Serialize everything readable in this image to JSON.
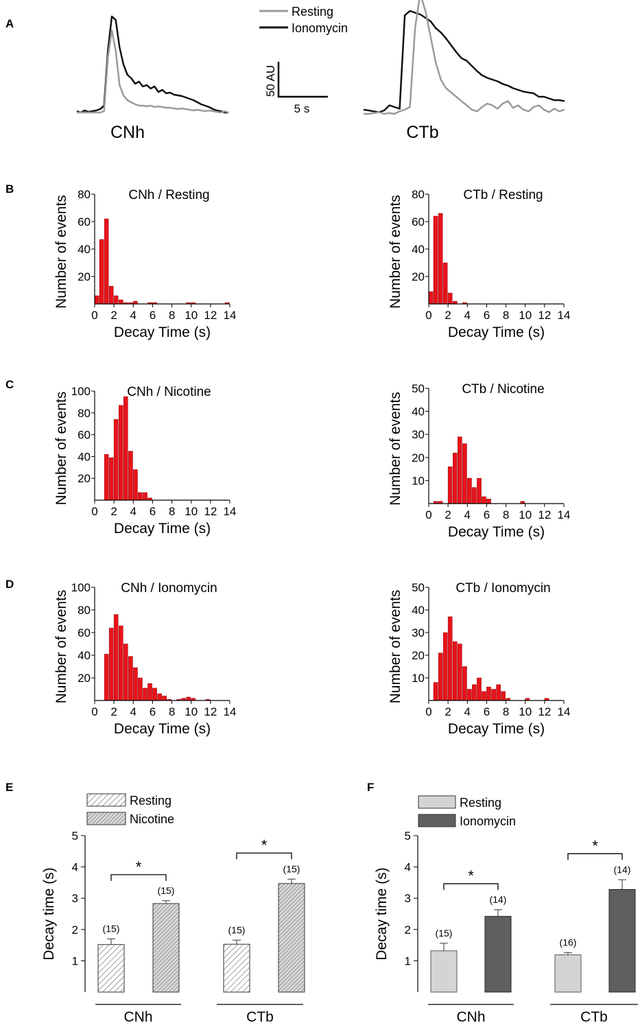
{
  "colors": {
    "histogram_bar": "#e8131b",
    "resting_trace": "#9a9a9a",
    "ionomycin_trace": "#111111",
    "resting_bar_F": "#d4d4d4",
    "ionomycin_bar_F": "#5f5f5f"
  },
  "panel_A": {
    "letter": "A",
    "legend": [
      "Resting",
      "Ionomycin"
    ],
    "scalebar_y": "50 AU",
    "scalebar_x": "5 s",
    "cell_labels": [
      "CNh",
      "CTb"
    ]
  },
  "histograms": {
    "xlabel": "Decay Time (s)",
    "ylabel": "Number of events",
    "rows": [
      {
        "letter": "B",
        "cells": [
          {
            "title": "CNh / Resting"
          },
          {
            "title": "CTb / Resting"
          }
        ]
      },
      {
        "letter": "C",
        "cells": [
          {
            "title": "CNh / Nicotine"
          },
          {
            "title": "CTb / Nicotine"
          }
        ]
      },
      {
        "letter": "D",
        "cells": [
          {
            "title": "CNh / Ionomycin"
          },
          {
            "title": "CTb / Ionomycin"
          }
        ]
      }
    ]
  },
  "panel_E": {
    "letter": "E",
    "ylabel": "Decay time (s)",
    "legend": [
      "Resting",
      "Nicotine"
    ],
    "groups": [
      "CNh",
      "CTb"
    ],
    "significance": "*"
  },
  "panel_F": {
    "letter": "F",
    "ylabel": "Decay time (s)",
    "legend": [
      "Resting",
      "Ionomycin"
    ],
    "groups": [
      "CNh",
      "CTb"
    ],
    "significance": "*"
  },
  "chart_data": [
    {
      "type": "line",
      "panel": "A",
      "cell": "CNh",
      "series": [
        {
          "name": "Resting",
          "values": [
            0,
            0,
            0,
            0,
            0,
            0,
            0,
            2,
            80,
            120,
            90,
            40,
            25,
            18,
            15,
            12,
            10,
            10,
            9,
            10,
            8,
            9,
            8,
            7,
            7,
            6,
            5,
            6,
            5,
            4,
            3,
            4,
            3,
            2,
            3,
            2,
            1,
            0,
            2,
            0
          ]
        },
        {
          "name": "Ionomycin",
          "values": [
            2,
            0,
            3,
            1,
            2,
            3,
            5,
            10,
            90,
            140,
            135,
            95,
            70,
            55,
            50,
            42,
            45,
            38,
            40,
            35,
            38,
            30,
            33,
            28,
            29,
            26,
            25,
            24,
            22,
            20,
            18,
            15,
            12,
            10,
            8,
            5,
            3,
            2,
            0,
            0
          ]
        }
      ]
    },
    {
      "type": "line",
      "panel": "A",
      "cell": "CTb",
      "series": [
        {
          "name": "Resting",
          "values": [
            0,
            0,
            1,
            2,
            0,
            1,
            0,
            3,
            5,
            8,
            100,
            140,
            120,
            90,
            60,
            40,
            30,
            25,
            20,
            15,
            10,
            5,
            3,
            8,
            12,
            10,
            6,
            12,
            15,
            7,
            10,
            5,
            3,
            8,
            10,
            5,
            2,
            6,
            3,
            5
          ]
        },
        {
          "name": "Ionomycin",
          "values": [
            5,
            4,
            3,
            2,
            4,
            10,
            8,
            6,
            115,
            120,
            118,
            116,
            112,
            108,
            100,
            95,
            88,
            80,
            72,
            65,
            62,
            56,
            50,
            45,
            42,
            40,
            38,
            35,
            33,
            30,
            28,
            26,
            25,
            24,
            20,
            20,
            18,
            16,
            16,
            15
          ]
        }
      ]
    },
    {
      "type": "bar",
      "panel": "B",
      "cell": "CNh / Resting",
      "bin_width": 0.5,
      "x_start": 0,
      "xlim": [
        0,
        14
      ],
      "ylim": [
        0,
        80
      ],
      "values": [
        6,
        47,
        62,
        13,
        6,
        3,
        1,
        1,
        2,
        0,
        0,
        1,
        1,
        0,
        0,
        0,
        0,
        0,
        0,
        1,
        1,
        0,
        0,
        0,
        0,
        0,
        0,
        1
      ]
    },
    {
      "type": "bar",
      "panel": "B",
      "cell": "CTb / Resting",
      "bin_width": 0.5,
      "x_start": 0,
      "xlim": [
        0,
        14
      ],
      "ylim": [
        0,
        80
      ],
      "values": [
        9,
        64,
        66,
        30,
        8,
        2,
        0,
        1
      ]
    },
    {
      "type": "bar",
      "panel": "C",
      "cell": "CNh / Nicotine",
      "bin_width": 0.5,
      "x_start": 1.0,
      "xlim": [
        0,
        14
      ],
      "ylim": [
        0,
        100
      ],
      "values": [
        42,
        39,
        74,
        87,
        95,
        45,
        28,
        7,
        7,
        2
      ]
    },
    {
      "type": "bar",
      "panel": "C",
      "cell": "CTb / Nicotine",
      "bin_width": 0.5,
      "x_start": 0.5,
      "xlim": [
        0,
        14
      ],
      "ylim": [
        0,
        50
      ],
      "values": [
        1,
        1,
        0,
        16,
        22,
        29,
        26,
        11,
        7,
        11,
        3,
        2,
        0,
        0,
        0,
        0,
        0,
        0,
        1
      ]
    },
    {
      "type": "bar",
      "panel": "D",
      "cell": "CNh / Ionomycin",
      "bin_width": 0.5,
      "x_start": 0.5,
      "xlim": [
        0,
        14
      ],
      "ylim": [
        0,
        100
      ],
      "values": [
        0,
        41,
        64,
        76,
        66,
        50,
        39,
        29,
        20,
        11,
        15,
        11,
        6,
        4,
        1,
        0,
        1,
        2,
        3,
        2,
        0,
        0,
        1,
        0,
        0,
        0,
        0
      ]
    },
    {
      "type": "bar",
      "panel": "D",
      "cell": "CTb / Ionomycin",
      "bin_width": 0.5,
      "x_start": 0.5,
      "xlim": [
        0,
        14
      ],
      "ylim": [
        0,
        50
      ],
      "values": [
        8,
        21,
        30,
        37,
        26,
        25,
        15,
        5,
        7,
        10,
        4,
        6,
        5,
        7,
        4,
        1,
        0,
        0,
        0,
        1,
        0,
        0,
        0,
        1
      ]
    },
    {
      "type": "bar",
      "panel": "E",
      "ylim": [
        0,
        5
      ],
      "categories": [
        "CNh",
        "CTb"
      ],
      "series": [
        {
          "name": "Resting",
          "values": [
            1.52,
            1.53
          ],
          "errors": [
            0.18,
            0.13
          ],
          "n": [
            "(15)",
            "(15)"
          ]
        },
        {
          "name": "Nicotine",
          "values": [
            2.83,
            3.47
          ],
          "errors": [
            0.09,
            0.14
          ],
          "n": [
            "(15)",
            "(15)"
          ]
        }
      ]
    },
    {
      "type": "bar",
      "panel": "F",
      "ylim": [
        0,
        5
      ],
      "categories": [
        "CNh",
        "CTb"
      ],
      "series": [
        {
          "name": "Resting",
          "values": [
            1.32,
            1.19
          ],
          "errors": [
            0.24,
            0.07
          ],
          "n": [
            "(15)",
            "(16)"
          ]
        },
        {
          "name": "Ionomycin",
          "values": [
            2.42,
            3.28
          ],
          "errors": [
            0.21,
            0.31
          ],
          "n": [
            "(14)",
            "(14)"
          ]
        }
      ]
    }
  ]
}
